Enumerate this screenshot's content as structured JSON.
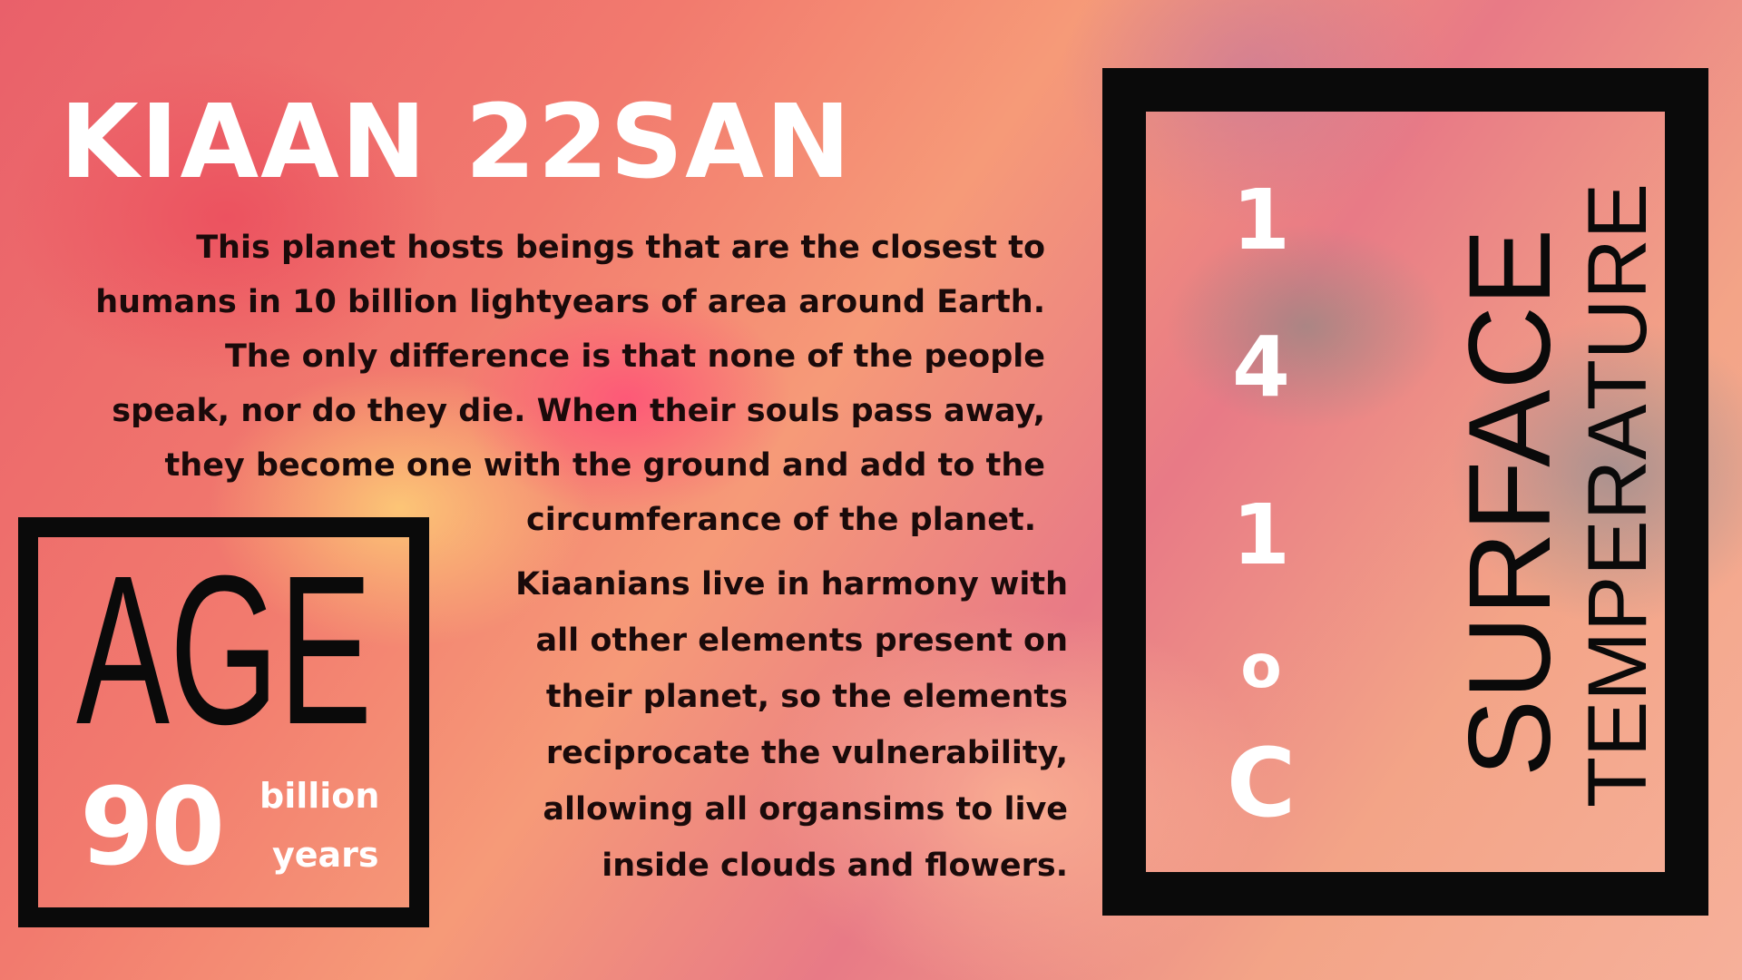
{
  "title": "KIAAN 22SAN",
  "description": {
    "lines": [
      "This planet hosts beings that are the closest to",
      "humans in 10 billion lightyears of area around Earth.",
      "The only difference is that none of the people",
      "speak, nor do they die. When their souls pass away,",
      "they become one with the ground and add to the",
      "circumferance of the planet."
    ]
  },
  "harmony": {
    "lines": [
      "Kiaanians live in harmony with",
      "all other elements present on",
      "their planet, so the elements",
      "reciprocate the vulnerability,",
      "allowing all organsims to live",
      "inside clouds and flowers."
    ]
  },
  "age": {
    "label": "AGE",
    "value": "90",
    "unit_line1": "billion",
    "unit_line2": "years"
  },
  "surface_temperature": {
    "digits": [
      "1",
      "4",
      "1",
      "o",
      "C"
    ],
    "word1": "SURFACE",
    "word2": "TEMPERATURE"
  },
  "colors": {
    "background_main": "#f27a6e",
    "text_dark": "#1a0a0a",
    "text_light": "#ffffff",
    "frame": "#0a0a0a"
  }
}
